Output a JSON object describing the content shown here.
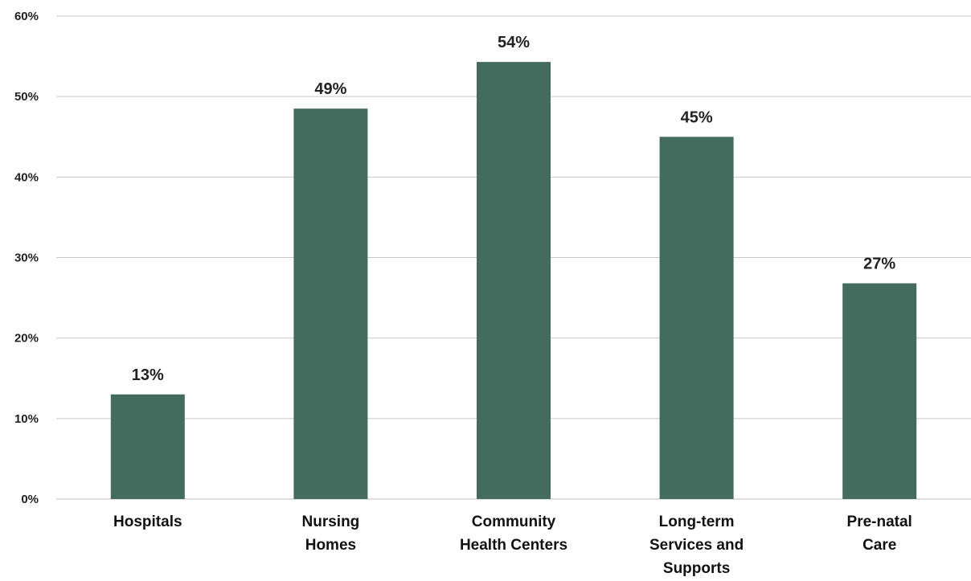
{
  "chart_data": {
    "type": "bar",
    "categories": [
      [
        "Hospitals"
      ],
      [
        "Nursing",
        "Homes"
      ],
      [
        "Community",
        "Health Centers"
      ],
      [
        "Long-term",
        "Services and",
        "Supports"
      ],
      [
        "Pre-natal",
        "Care"
      ]
    ],
    "values": [
      13,
      48.5,
      54.3,
      45,
      26.8
    ],
    "data_labels": [
      "13%",
      "49%",
      "54%",
      "45%",
      "27%"
    ],
    "yticks": [
      0,
      10,
      20,
      30,
      40,
      50,
      60
    ],
    "ytick_labels": [
      "0%",
      "10%",
      "20%",
      "30%",
      "40%",
      "50%",
      "60%"
    ],
    "ylim": [
      0,
      60
    ],
    "grid": true,
    "legend": "none",
    "bar_color": "#436b5e",
    "title": "",
    "xlabel": "",
    "ylabel": ""
  }
}
